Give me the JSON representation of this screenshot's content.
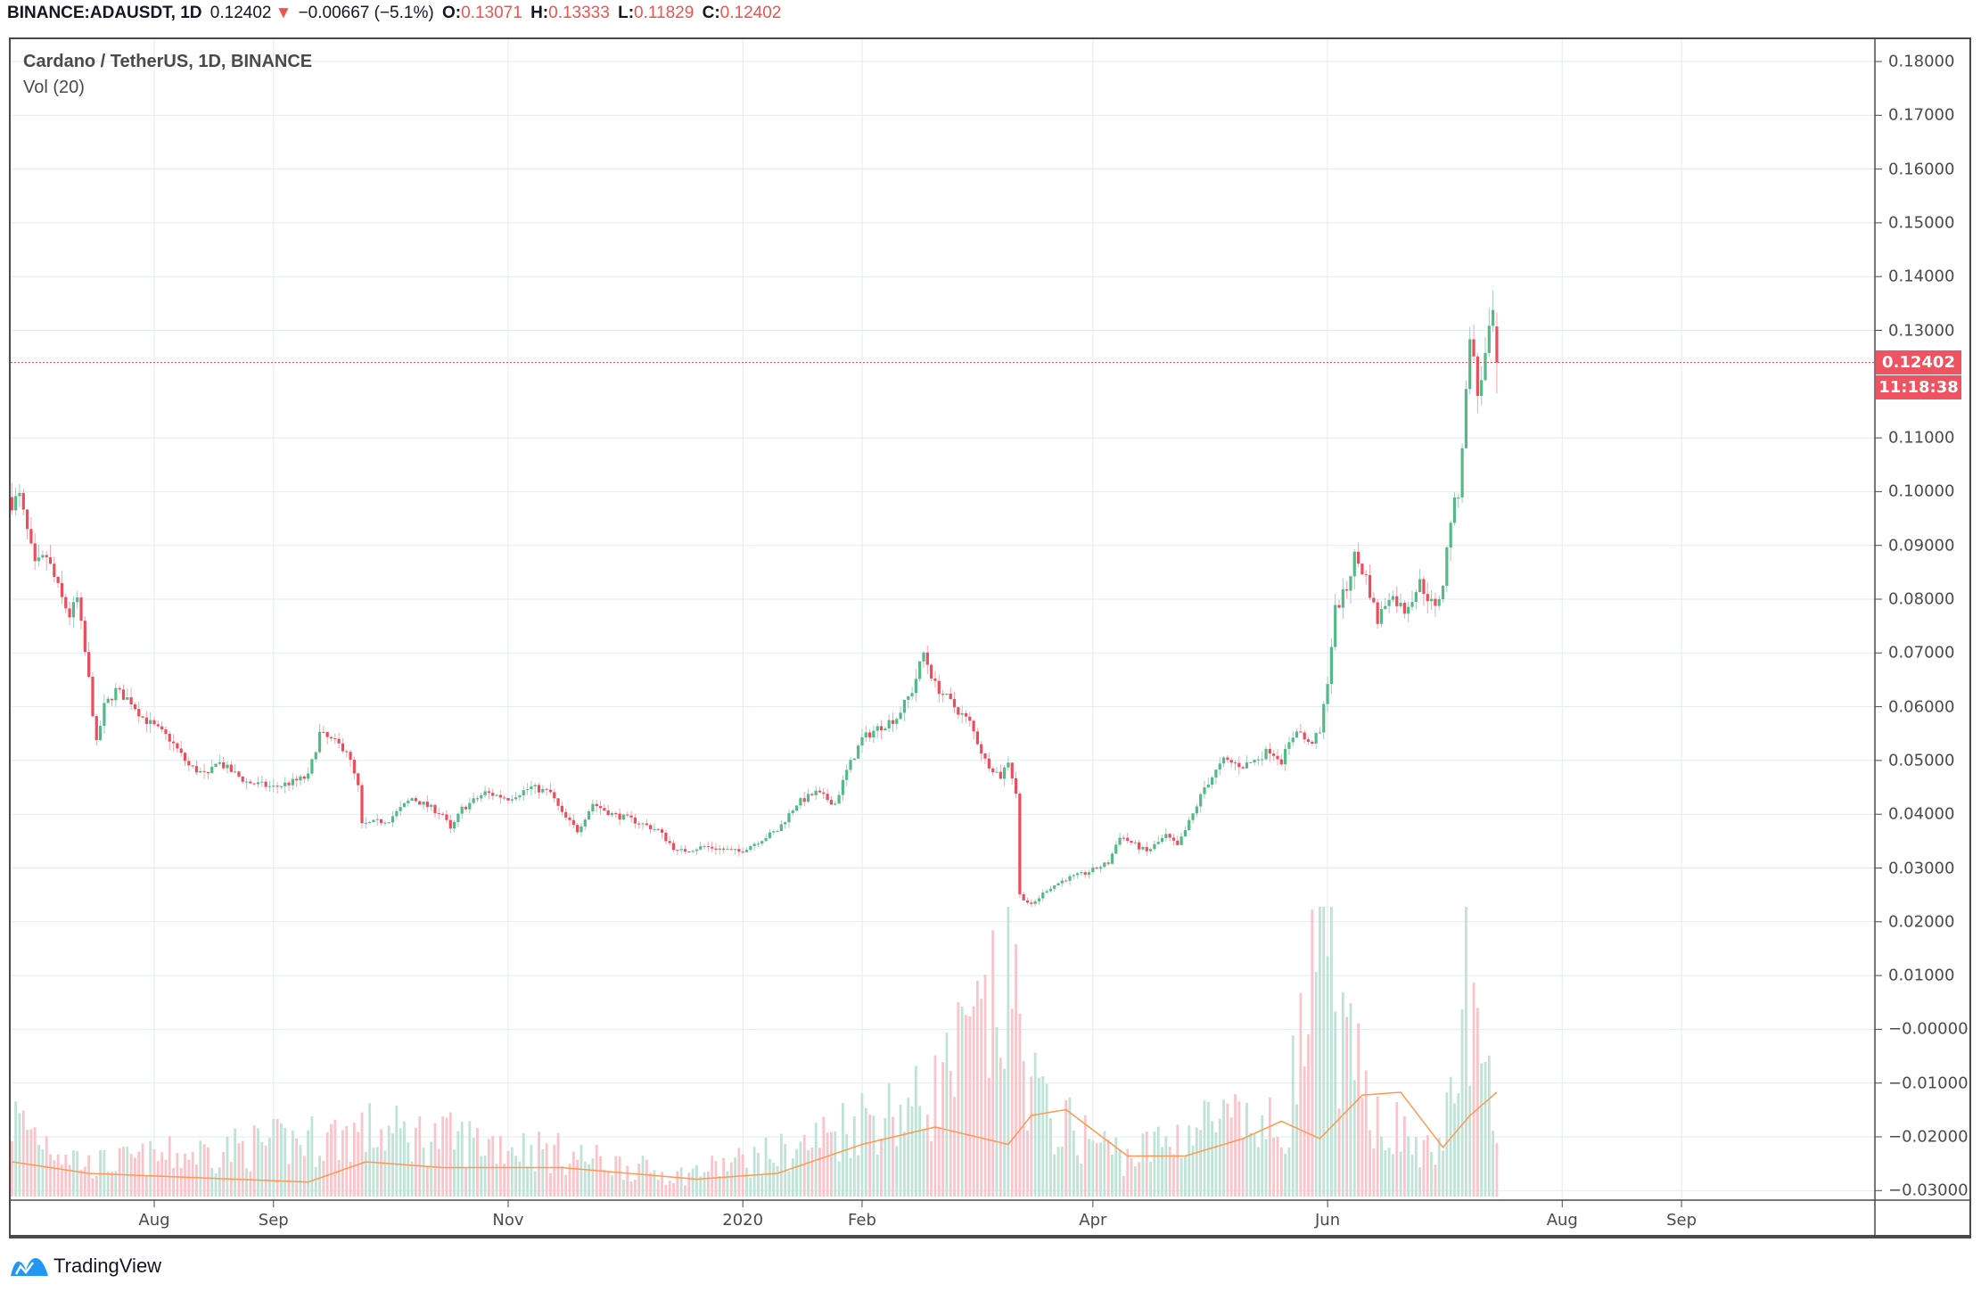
{
  "header": {
    "symbol": "BINANCE:ADAUSDT, 1D",
    "last": "0.12402",
    "direction_icon": "triangle-down-icon",
    "change": "−0.00667 (−5.1%)",
    "open_label": "O:",
    "open": "0.13071",
    "high_label": "H:",
    "high": "0.13333",
    "low_label": "L:",
    "low": "0.11829",
    "close_label": "C:",
    "close": "0.12402"
  },
  "legend": {
    "title": "Cardano / TetherUS, 1D, BINANCE",
    "indicator": "Vol (20)"
  },
  "price_axis": {
    "ticks": [
      "0.18000",
      "0.17000",
      "0.16000",
      "0.15000",
      "0.14000",
      "0.13000",
      "0.11000",
      "0.10000",
      "0.09000",
      "0.08000",
      "0.07000",
      "0.06000",
      "0.05000",
      "0.04000",
      "0.03000",
      "0.02000",
      "0.01000",
      "−0.00000",
      "−0.01000",
      "−0.02000",
      "−0.03000"
    ],
    "last_price_tag": "0.12402",
    "countdown_tag": "11:18:38"
  },
  "time_axis": {
    "ticks": [
      "Aug",
      "Sep",
      "Nov",
      "2020",
      "Feb",
      "Apr",
      "Jun",
      "Aug",
      "Sep"
    ]
  },
  "branding": {
    "name": "TradingView"
  },
  "colors": {
    "up": "#53b987",
    "down": "#eb4d5c",
    "volume_ma": "#ff9850",
    "price_line": "#ef5350",
    "grid": "#e1ecf2"
  },
  "chart_data": {
    "type": "candlestick",
    "interval": "1D",
    "ylim": [
      0.02,
      0.18
    ],
    "grid": true,
    "close_keypoints": [
      [
        "2019-06-25",
        0.098
      ],
      [
        "2019-06-27",
        0.099
      ],
      [
        "2019-07-01",
        0.086
      ],
      [
        "2019-07-04",
        0.088
      ],
      [
        "2019-07-08",
        0.08
      ],
      [
        "2019-07-10",
        0.077
      ],
      [
        "2019-07-12",
        0.08
      ],
      [
        "2019-07-14",
        0.07
      ],
      [
        "2019-07-15",
        0.065
      ],
      [
        "2019-07-17",
        0.053
      ],
      [
        "2019-07-19",
        0.06
      ],
      [
        "2019-07-22",
        0.063
      ],
      [
        "2019-07-26",
        0.061
      ],
      [
        "2019-07-29",
        0.058
      ],
      [
        "2019-08-05",
        0.054
      ],
      [
        "2019-08-10",
        0.049
      ],
      [
        "2019-08-15",
        0.047
      ],
      [
        "2019-08-17",
        0.05
      ],
      [
        "2019-08-25",
        0.046
      ],
      [
        "2019-09-01",
        0.045
      ],
      [
        "2019-09-06",
        0.046
      ],
      [
        "2019-09-10",
        0.047
      ],
      [
        "2019-09-13",
        0.055
      ],
      [
        "2019-09-20",
        0.052
      ],
      [
        "2019-09-23",
        0.045
      ],
      [
        "2019-09-24",
        0.038
      ],
      [
        "2019-10-01",
        0.039
      ],
      [
        "2019-10-07",
        0.043
      ],
      [
        "2019-10-15",
        0.04
      ],
      [
        "2019-10-17",
        0.037
      ],
      [
        "2019-10-20",
        0.041
      ],
      [
        "2019-10-26",
        0.044
      ],
      [
        "2019-11-01",
        0.043
      ],
      [
        "2019-11-07",
        0.045
      ],
      [
        "2019-11-12",
        0.044
      ],
      [
        "2019-11-15",
        0.04
      ],
      [
        "2019-11-19",
        0.037
      ],
      [
        "2019-11-23",
        0.042
      ],
      [
        "2019-11-28",
        0.04
      ],
      [
        "2019-12-03",
        0.039
      ],
      [
        "2019-12-10",
        0.037
      ],
      [
        "2019-12-15",
        0.033
      ],
      [
        "2019-12-22",
        0.034
      ],
      [
        "2019-12-31",
        0.033
      ],
      [
        "2020-01-05",
        0.035
      ],
      [
        "2020-01-10",
        0.037
      ],
      [
        "2020-01-15",
        0.042
      ],
      [
        "2020-01-20",
        0.044
      ],
      [
        "2020-01-25",
        0.042
      ],
      [
        "2020-01-28",
        0.048
      ],
      [
        "2020-02-01",
        0.054
      ],
      [
        "2020-02-05",
        0.056
      ],
      [
        "2020-02-10",
        0.058
      ],
      [
        "2020-02-14",
        0.063
      ],
      [
        "2020-02-17",
        0.07
      ],
      [
        "2020-02-20",
        0.064
      ],
      [
        "2020-02-25",
        0.06
      ],
      [
        "2020-02-29",
        0.057
      ],
      [
        "2020-03-04",
        0.05
      ],
      [
        "2020-03-08",
        0.047
      ],
      [
        "2020-03-10",
        0.05
      ],
      [
        "2020-03-12",
        0.044
      ],
      [
        "2020-03-13",
        0.025
      ],
      [
        "2020-03-16",
        0.023
      ],
      [
        "2020-03-20",
        0.026
      ],
      [
        "2020-03-25",
        0.028
      ],
      [
        "2020-03-30",
        0.029
      ],
      [
        "2020-04-05",
        0.031
      ],
      [
        "2020-04-08",
        0.036
      ],
      [
        "2020-04-15",
        0.033
      ],
      [
        "2020-04-20",
        0.036
      ],
      [
        "2020-04-23",
        0.034
      ],
      [
        "2020-04-27",
        0.04
      ],
      [
        "2020-04-30",
        0.045
      ],
      [
        "2020-05-05",
        0.05
      ],
      [
        "2020-05-10",
        0.049
      ],
      [
        "2020-05-13",
        0.05
      ],
      [
        "2020-05-17",
        0.052
      ],
      [
        "2020-05-20",
        0.05
      ],
      [
        "2020-05-24",
        0.056
      ],
      [
        "2020-05-27",
        0.053
      ],
      [
        "2020-05-30",
        0.055
      ],
      [
        "2020-06-01",
        0.065
      ],
      [
        "2020-06-03",
        0.078
      ],
      [
        "2020-06-06",
        0.082
      ],
      [
        "2020-06-08",
        0.088
      ],
      [
        "2020-06-11",
        0.084
      ],
      [
        "2020-06-14",
        0.076
      ],
      [
        "2020-06-17",
        0.081
      ],
      [
        "2020-06-21",
        0.078
      ],
      [
        "2020-06-25",
        0.083
      ],
      [
        "2020-06-29",
        0.078
      ],
      [
        "2020-07-01",
        0.083
      ],
      [
        "2020-07-03",
        0.095
      ],
      [
        "2020-07-05",
        0.1
      ],
      [
        "2020-07-07",
        0.118
      ],
      [
        "2020-07-08",
        0.13
      ],
      [
        "2020-07-10",
        0.118
      ],
      [
        "2020-07-12",
        0.125
      ],
      [
        "2020-07-14",
        0.133
      ],
      [
        "2020-07-15",
        0.124
      ]
    ],
    "last_candle": {
      "open": 0.13071,
      "high": 0.13333,
      "low": 0.11829,
      "close": 0.12402
    },
    "volume_relative_keypoints": [
      [
        "2019-06-25",
        30
      ],
      [
        "2019-07-15",
        12
      ],
      [
        "2019-09-13",
        22
      ],
      [
        "2019-09-24",
        25
      ],
      [
        "2019-11-01",
        20
      ],
      [
        "2019-12-15",
        8
      ],
      [
        "2020-01-15",
        18
      ],
      [
        "2020-02-01",
        30
      ],
      [
        "2020-02-17",
        35
      ],
      [
        "2020-03-12",
        80
      ],
      [
        "2020-03-13",
        57
      ],
      [
        "2020-03-20",
        30
      ],
      [
        "2020-04-10",
        15
      ],
      [
        "2020-05-01",
        28
      ],
      [
        "2020-05-20",
        25
      ],
      [
        "2020-06-01",
        100
      ],
      [
        "2020-06-05",
        55
      ],
      [
        "2020-06-15",
        30
      ],
      [
        "2020-06-28",
        15
      ],
      [
        "2020-07-05",
        40
      ],
      [
        "2020-07-07",
        97
      ],
      [
        "2020-07-10",
        55
      ],
      [
        "2020-07-15",
        25
      ]
    ],
    "volume_ma_keypoints": [
      [
        "2019-06-25",
        12
      ],
      [
        "2019-07-15",
        8
      ],
      [
        "2019-09-10",
        5
      ],
      [
        "2019-09-25",
        12
      ],
      [
        "2019-10-15",
        10
      ],
      [
        "2019-11-15",
        10
      ],
      [
        "2019-12-20",
        6
      ],
      [
        "2020-01-10",
        8
      ],
      [
        "2020-02-01",
        18
      ],
      [
        "2020-02-20",
        24
      ],
      [
        "2020-03-10",
        18
      ],
      [
        "2020-03-16",
        28
      ],
      [
        "2020-03-25",
        30
      ],
      [
        "2020-04-10",
        14
      ],
      [
        "2020-04-25",
        14
      ],
      [
        "2020-05-10",
        20
      ],
      [
        "2020-05-20",
        26
      ],
      [
        "2020-05-30",
        20
      ],
      [
        "2020-06-10",
        35
      ],
      [
        "2020-06-20",
        36
      ],
      [
        "2020-07-01",
        17
      ],
      [
        "2020-07-08",
        28
      ],
      [
        "2020-07-15",
        36
      ]
    ]
  }
}
